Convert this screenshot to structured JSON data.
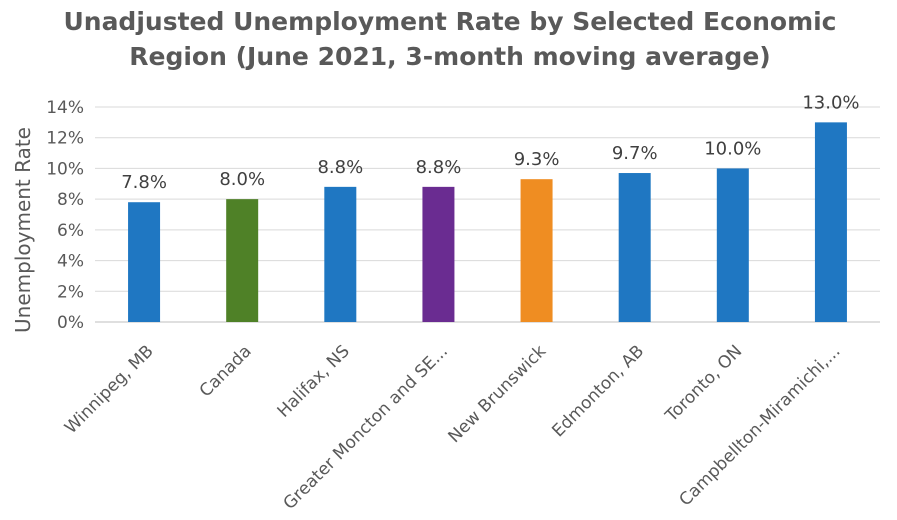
{
  "chart_data": {
    "type": "bar",
    "title_lines": [
      "Unadjusted Unemployment Rate by Selected Economic",
      "Region (June 2021, 3-month moving average)"
    ],
    "ylabel": "Unemployment Rate",
    "xlabel": "",
    "ylim": [
      0,
      14
    ],
    "y_ticks": [
      0,
      2,
      4,
      6,
      8,
      10,
      12,
      14
    ],
    "y_tick_labels": [
      "0%",
      "2%",
      "4%",
      "6%",
      "8%",
      "10%",
      "12%",
      "14%"
    ],
    "grid": true,
    "categories": [
      "Winnipeg, MB",
      "Canada",
      "Halifax, NS",
      "Greater Moncton and SE...",
      "New Brunswick",
      "Edmonton, AB",
      "Toronto, ON",
      "Campbellton-Miramichi,..."
    ],
    "values": [
      7.8,
      8.0,
      8.8,
      8.8,
      9.3,
      9.7,
      10.0,
      13.0
    ],
    "data_labels": [
      "7.8%",
      "8.0%",
      "8.8%",
      "8.8%",
      "9.3%",
      "9.7%",
      "10.0%",
      "13.0%"
    ],
    "colors": [
      "#1f77c2",
      "#4f8127",
      "#6a2c91",
      "#ef8d22"
    ],
    "bar_colors": [
      "#1f77c2",
      "#4f8127",
      "#1f77c2",
      "#6a2c91",
      "#ef8d22",
      "#1f77c2",
      "#1f77c2",
      "#1f77c2"
    ]
  }
}
